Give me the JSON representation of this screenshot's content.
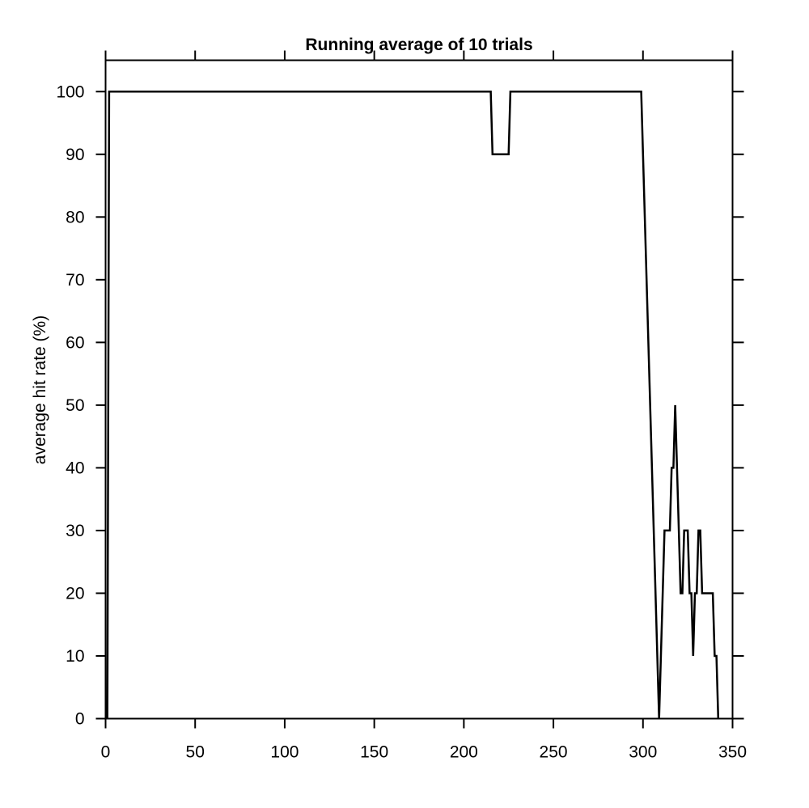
{
  "chart_data": {
    "type": "line",
    "title": "Running average of 10 trials",
    "xlabel": "",
    "ylabel": "average hit rate (%)",
    "xlim": [
      0,
      350
    ],
    "ylim": [
      0,
      105
    ],
    "x_ticks": [
      0,
      50,
      100,
      150,
      200,
      250,
      300,
      350
    ],
    "y_ticks": [
      0,
      10,
      20,
      30,
      40,
      50,
      60,
      70,
      80,
      90,
      100
    ],
    "grid": false,
    "line_color": "#000000",
    "series": [
      {
        "x": [
          1,
          2,
          215,
          216,
          225,
          226,
          299,
          309,
          312,
          315,
          316,
          317,
          318,
          320,
          321,
          322,
          323,
          325,
          326,
          327,
          328,
          329,
          330,
          331,
          332,
          333,
          334,
          339,
          340,
          341,
          342
        ],
        "y": [
          0,
          100,
          100,
          90,
          90,
          100,
          100,
          0,
          30,
          30,
          40,
          40,
          50,
          30,
          20,
          20,
          30,
          30,
          20,
          20,
          10,
          20,
          20,
          30,
          30,
          20,
          20,
          20,
          10,
          10,
          0
        ]
      }
    ]
  }
}
